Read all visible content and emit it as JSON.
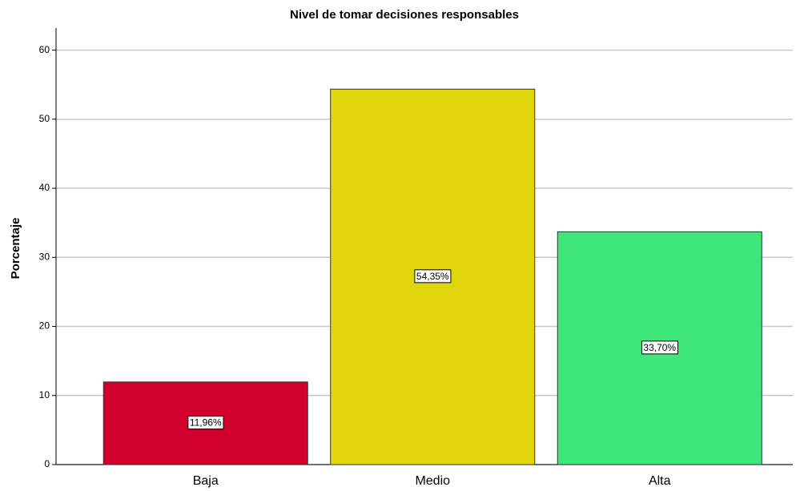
{
  "chart_data": {
    "type": "bar",
    "title": "Nivel de tomar decisiones responsables",
    "y_label": "Porcentaje",
    "categories": [
      "Baja",
      "Medio",
      "Alta"
    ],
    "values": [
      11.96,
      54.35,
      33.7
    ],
    "value_labels": [
      "11,96%",
      "54,35%",
      "33,70%"
    ],
    "colors": [
      "#d2002c",
      "#e1d60c",
      "#40e67a"
    ],
    "ylim": [
      0,
      63.2
    ],
    "yticks": [
      0,
      10,
      20,
      30,
      40,
      50,
      60
    ],
    "grid": true
  }
}
